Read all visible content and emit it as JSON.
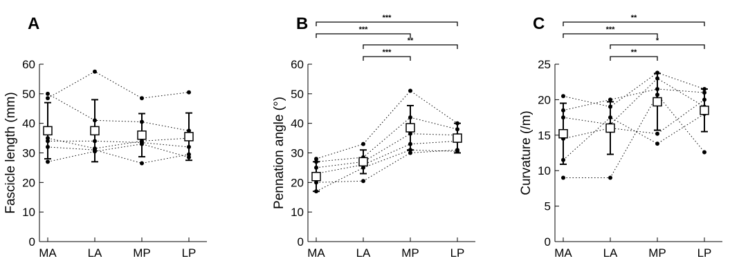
{
  "chart_data": [
    {
      "type": "scatter",
      "panel_label": "A",
      "categories": [
        "MA",
        "LA",
        "MP",
        "LP"
      ],
      "ylabel": "Fascicle length (mm)",
      "ylim": [
        0,
        60
      ],
      "yticks": [
        0,
        10,
        20,
        30,
        40,
        50,
        60
      ],
      "mean": [
        37.5,
        37.5,
        36.0,
        35.5
      ],
      "sd": [
        9.5,
        10.5,
        7.3,
        8.0
      ],
      "subjects": [
        [
          50.0,
          41.0,
          40.5,
          37.5
        ],
        [
          48.5,
          57.5,
          48.5,
          50.5
        ],
        [
          35.0,
          31.5,
          34.0,
          35.0
        ],
        [
          34.0,
          34.0,
          33.5,
          32.0
        ],
        [
          32.0,
          31.0,
          26.5,
          29.5
        ],
        [
          27.0,
          30.5,
          33.0,
          28.5
        ]
      ],
      "significance": []
    },
    {
      "type": "scatter",
      "panel_label": "B",
      "categories": [
        "MA",
        "LA",
        "MP",
        "LP"
      ],
      "ylabel": "Pennation angle (°)",
      "ylim": [
        0,
        60
      ],
      "yticks": [
        0,
        10,
        20,
        30,
        40,
        50,
        60
      ],
      "mean": [
        22.0,
        27.0,
        38.5,
        35.0
      ],
      "sd": [
        5.0,
        4.0,
        7.5,
        5.0
      ],
      "subjects": [
        [
          28.0,
          33.0,
          51.0,
          40.0
        ],
        [
          27.0,
          28.5,
          42.0,
          38.0
        ],
        [
          25.0,
          27.0,
          36.5,
          36.0
        ],
        [
          23.0,
          26.0,
          33.0,
          34.0
        ],
        [
          20.0,
          20.5,
          30.0,
          31.0
        ],
        [
          17.0,
          25.0,
          31.0,
          30.5
        ]
      ],
      "significance": [
        {
          "from": "MA",
          "to": "LP",
          "label": "***"
        },
        {
          "from": "MA",
          "to": "MP",
          "label": "***"
        },
        {
          "from": "LA",
          "to": "LP",
          "label": "**"
        },
        {
          "from": "LA",
          "to": "MP",
          "label": "***"
        }
      ]
    },
    {
      "type": "scatter",
      "panel_label": "C",
      "categories": [
        "MA",
        "LA",
        "MP",
        "LP"
      ],
      "ylabel": "Curvature (/m)",
      "ylim": [
        0,
        25
      ],
      "yticks": [
        0,
        5,
        10,
        15,
        20,
        25
      ],
      "mean": [
        15.2,
        16.0,
        19.7,
        18.5
      ],
      "sd": [
        4.3,
        3.7,
        4.0,
        3.0
      ],
      "subjects": [
        [
          20.5,
          19.0,
          23.8,
          21.5
        ],
        [
          18.5,
          20.0,
          21.5,
          21.0
        ],
        [
          17.5,
          16.5,
          23.0,
          19.0
        ],
        [
          14.5,
          16.0,
          15.2,
          20.0
        ],
        [
          11.5,
          17.5,
          13.8,
          18.0
        ],
        [
          9.0,
          9.0,
          20.7,
          12.6
        ]
      ],
      "significance": [
        {
          "from": "MA",
          "to": "LP",
          "label": "**"
        },
        {
          "from": "MA",
          "to": "MP",
          "label": "***"
        },
        {
          "from": "LA",
          "to": "LP",
          "label": "*"
        },
        {
          "from": "LA",
          "to": "MP",
          "label": "**"
        }
      ]
    }
  ]
}
